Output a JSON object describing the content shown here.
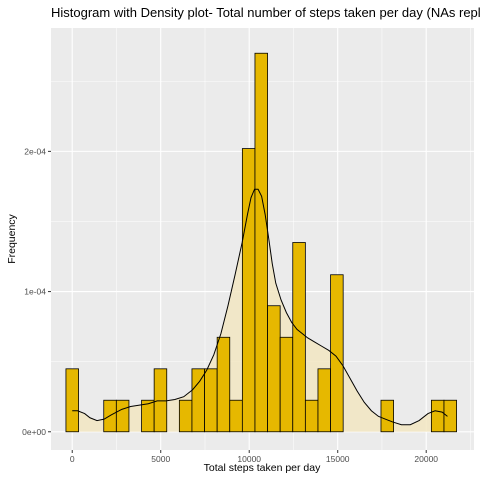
{
  "chart_data": {
    "type": "bar",
    "title": "Histogram with Density plot- Total number of steps taken per day (NAs replaced)",
    "xlabel": "Total steps taken per day",
    "ylabel": "Frequency",
    "xlim": [
      -1200,
      22700
    ],
    "ylim": [
      -1.3e-05,
      0.000288
    ],
    "x_ticks": [
      0,
      5000,
      10000,
      15000,
      20000
    ],
    "x_tick_labels": [
      "0",
      "5000",
      "10000",
      "15000",
      "20000"
    ],
    "y_ticks": [
      0,
      0.0001,
      0.0002
    ],
    "y_tick_labels": [
      "0e+00",
      "1e-04",
      "2e-04"
    ],
    "bin_width": 712,
    "bins": [
      {
        "start": -356,
        "end": 356,
        "value": 4.49e-05
      },
      {
        "start": 356,
        "end": 1068,
        "value": 0
      },
      {
        "start": 1068,
        "end": 1780,
        "value": 0
      },
      {
        "start": 1780,
        "end": 2492,
        "value": 2.25e-05
      },
      {
        "start": 2492,
        "end": 3204,
        "value": 2.25e-05
      },
      {
        "start": 3204,
        "end": 3916,
        "value": 0
      },
      {
        "start": 3916,
        "end": 4628,
        "value": 2.25e-05
      },
      {
        "start": 4628,
        "end": 5340,
        "value": 4.49e-05
      },
      {
        "start": 5340,
        "end": 6052,
        "value": 0
      },
      {
        "start": 6052,
        "end": 6764,
        "value": 2.25e-05
      },
      {
        "start": 6764,
        "end": 7476,
        "value": 4.49e-05
      },
      {
        "start": 7476,
        "end": 8188,
        "value": 4.49e-05
      },
      {
        "start": 8188,
        "end": 8900,
        "value": 6.74e-05
      },
      {
        "start": 8900,
        "end": 9612,
        "value": 2.25e-05
      },
      {
        "start": 9612,
        "end": 10324,
        "value": 0.000202
      },
      {
        "start": 10324,
        "end": 11036,
        "value": 0.00027
      },
      {
        "start": 11036,
        "end": 11748,
        "value": 8.99e-05
      },
      {
        "start": 11748,
        "end": 12460,
        "value": 6.74e-05
      },
      {
        "start": 12460,
        "end": 13172,
        "value": 0.000135
      },
      {
        "start": 13172,
        "end": 13884,
        "value": 2.25e-05
      },
      {
        "start": 13884,
        "end": 14596,
        "value": 4.49e-05
      },
      {
        "start": 14596,
        "end": 15308,
        "value": 0.000112
      },
      {
        "start": 15308,
        "end": 16020,
        "value": 0
      },
      {
        "start": 16020,
        "end": 16732,
        "value": 0
      },
      {
        "start": 16732,
        "end": 17444,
        "value": 0
      },
      {
        "start": 17444,
        "end": 18156,
        "value": 2.25e-05
      },
      {
        "start": 18156,
        "end": 18868,
        "value": 0
      },
      {
        "start": 18868,
        "end": 19580,
        "value": 0
      },
      {
        "start": 19580,
        "end": 20292,
        "value": 0
      },
      {
        "start": 20292,
        "end": 21004,
        "value": 2.25e-05
      },
      {
        "start": 21004,
        "end": 21716,
        "value": 2.25e-05
      }
    ],
    "density": {
      "x": [
        0,
        300,
        700,
        1000,
        1400,
        1800,
        2200,
        2800,
        3300,
        3800,
        4300,
        4800,
        5300,
        5800,
        6300,
        6800,
        7200,
        7600,
        8000,
        8400,
        8800,
        9200,
        9600,
        9900,
        10100,
        10300,
        10500,
        10700,
        10900,
        11100,
        11300,
        11500,
        11800,
        12100,
        12400,
        12700,
        13000,
        13300,
        13700,
        14100,
        14500,
        14900,
        15300,
        15700,
        16100,
        16500,
        16900,
        17300,
        17700,
        18100,
        18600,
        19100,
        19600,
        20100,
        20500,
        20900,
        21200
      ],
      "y": [
        1.5e-05,
        1.5e-05,
        1.3e-05,
        1e-05,
        8e-06,
        9e-06,
        1.2e-05,
        1.6e-05,
        1.8e-05,
        1.9e-05,
        2e-05,
        2.2e-05,
        2.2e-05,
        2.3e-05,
        2.5e-05,
        3e-05,
        3.6e-05,
        4.4e-05,
        5.5e-05,
        7e-05,
        9e-05,
        0.000112,
        0.000135,
        0.000155,
        0.000167,
        0.000173,
        0.000173,
        0.000168,
        0.000155,
        0.000138,
        0.00012,
        0.000106,
        9.4e-05,
        8.5e-05,
        7.8e-05,
        7.3e-05,
        7e-05,
        6.7e-05,
        6.4e-05,
        6.1e-05,
        5.8e-05,
        5.4e-05,
        4.7e-05,
        3.8e-05,
        2.9e-05,
        2.1e-05,
        1.5e-05,
        1.1e-05,
        9e-06,
        7e-06,
        5e-06,
        5e-06,
        8e-06,
        1.3e-05,
        1.5e-05,
        1.4e-05,
        1.1e-05
      ]
    },
    "colors": {
      "bar_fill": "#e6b800",
      "bar_stroke": "#000000",
      "density_fill": "#f2e6c2",
      "density_line": "#000000",
      "panel_bg": "#ebebeb",
      "grid_major": "#ffffff"
    },
    "grid": true,
    "legend": "none"
  }
}
